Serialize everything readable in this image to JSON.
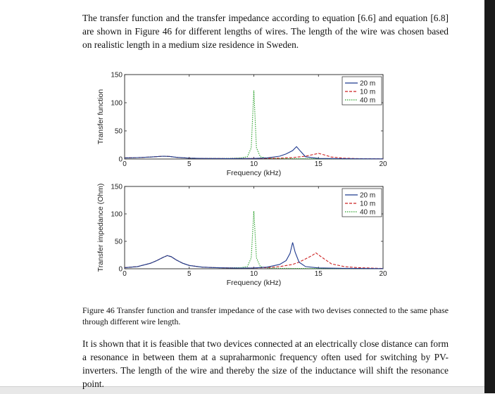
{
  "document": {
    "paragraph_1": "The transfer function and the transfer impedance according to equation [6.6] and equation [6.8] are shown in Figure 46 for different lengths of wires. The length of the wire was chosen based on realistic length in a medium size residence in Sweden.",
    "figure_caption": "Figure 46 Transfer function and transfer impedance of the case with two devises connected to the same phase through different wire length.",
    "paragraph_2": "It is shown that it is feasible that two devices connected at an electrically close distance can form a resonance in between them at a supraharmonic frequency often used for switching by PV-inverters. The length of the wire and thereby the size of the inductance will shift the resonance point."
  },
  "chart_data": [
    {
      "type": "line",
      "title": "",
      "xlabel": "Frequency (kHz)",
      "ylabel": "Transfer function",
      "xlim": [
        0,
        20
      ],
      "ylim": [
        0,
        150
      ],
      "xticks": [
        0,
        5,
        10,
        15,
        20
      ],
      "yticks": [
        0,
        50,
        100,
        150
      ],
      "grid": false,
      "legend_position": "top-right",
      "series": [
        {
          "name": "20 m",
          "color": "#1f3a8f",
          "style": "solid",
          "x": [
            0,
            1,
            2,
            3,
            3.5,
            4,
            5,
            6,
            8,
            10,
            11,
            12,
            12.5,
            13,
            13.3,
            13.6,
            14,
            15,
            17,
            20
          ],
          "y": [
            2,
            2.5,
            3.5,
            5,
            4.5,
            3,
            1.5,
            1,
            0.8,
            1,
            2,
            5,
            9,
            15,
            22,
            14,
            4,
            1,
            0.5,
            0.3
          ]
        },
        {
          "name": "10 m",
          "color": "#cc2222",
          "style": "dashed",
          "x": [
            0,
            1,
            2,
            3,
            3.5,
            4,
            5,
            6,
            8,
            10,
            12,
            13,
            14,
            14.5,
            15,
            15.5,
            16,
            17,
            18,
            20
          ],
          "y": [
            2,
            2.5,
            3.5,
            5,
            4.5,
            3,
            1.5,
            1,
            0.8,
            1,
            1.5,
            2.5,
            5,
            7.5,
            10,
            7,
            3.5,
            1.5,
            0.8,
            0.3
          ]
        },
        {
          "name": "40 m",
          "color": "#2aa02a",
          "style": "dotted",
          "x": [
            0,
            1,
            2,
            3,
            3.5,
            4,
            5,
            6,
            8,
            9,
            9.5,
            9.8,
            10,
            10.2,
            10.5,
            11,
            12,
            15,
            20
          ],
          "y": [
            2,
            2.5,
            3.5,
            5,
            4.5,
            3,
            1.5,
            1,
            1,
            2,
            4,
            20,
            122,
            20,
            4,
            1.5,
            0.8,
            0.4,
            0.2
          ]
        }
      ]
    },
    {
      "type": "line",
      "title": "",
      "xlabel": "Frequency (kHz)",
      "ylabel": "Transfer impedance (Ohm)",
      "xlim": [
        0,
        20
      ],
      "ylim": [
        0,
        150
      ],
      "xticks": [
        0,
        5,
        10,
        15,
        20
      ],
      "yticks": [
        0,
        50,
        100,
        150
      ],
      "grid": false,
      "legend_position": "top-right",
      "series": [
        {
          "name": "20 m",
          "color": "#1f3a8f",
          "style": "solid",
          "x": [
            0,
            1,
            2,
            2.5,
            3,
            3.3,
            3.6,
            4,
            4.5,
            5,
            6,
            7,
            8,
            9,
            10,
            11,
            12,
            12.5,
            12.8,
            13,
            13.2,
            13.5,
            14,
            15,
            17,
            20
          ],
          "y": [
            2,
            4,
            10,
            15,
            21,
            24,
            22,
            16,
            10,
            6,
            3,
            2,
            1.5,
            1.2,
            1.5,
            3,
            8,
            15,
            28,
            48,
            30,
            12,
            4,
            1.5,
            0.8,
            0.3
          ]
        },
        {
          "name": "10 m",
          "color": "#cc2222",
          "style": "dashed",
          "x": [
            0,
            1,
            2,
            2.5,
            3,
            3.3,
            3.6,
            4,
            4.5,
            5,
            6,
            7,
            8,
            9,
            10,
            11,
            12,
            13,
            13.5,
            14,
            14.5,
            14.8,
            15.2,
            16,
            17,
            18,
            20
          ],
          "y": [
            2,
            4,
            10,
            15,
            21,
            24,
            22,
            16,
            10,
            6,
            3,
            2,
            1.5,
            1.2,
            1.5,
            2,
            4,
            8,
            12,
            18,
            24,
            29,
            22,
            9,
            4,
            2,
            0.5
          ]
        },
        {
          "name": "40 m",
          "color": "#2aa02a",
          "style": "dotted",
          "x": [
            0,
            1,
            2,
            2.5,
            3,
            3.3,
            3.6,
            4,
            4.5,
            5,
            6,
            7,
            8,
            9,
            9.5,
            9.8,
            10,
            10.2,
            10.5,
            11,
            12,
            15,
            20
          ],
          "y": [
            2,
            4,
            10,
            15,
            21,
            24,
            22,
            16,
            10,
            6,
            3,
            2,
            1.5,
            2,
            4,
            20,
            105,
            20,
            4,
            1.5,
            0.8,
            0.4,
            0.2
          ]
        }
      ]
    }
  ]
}
